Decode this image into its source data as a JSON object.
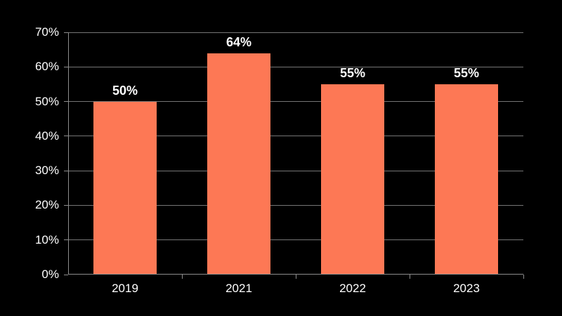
{
  "chart_data": {
    "type": "bar",
    "categories": [
      "2019",
      "2021",
      "2022",
      "2023"
    ],
    "values": [
      50,
      64,
      55,
      55
    ],
    "data_labels": [
      "50%",
      "64%",
      "55%",
      "55%"
    ],
    "title": "",
    "xlabel": "",
    "ylabel": "",
    "ylim": [
      0,
      70
    ],
    "ytick_step": 10,
    "ytick_labels": [
      "0%",
      "10%",
      "20%",
      "30%",
      "40%",
      "50%",
      "60%",
      "70%"
    ],
    "grid": "horizontal",
    "legend": "none",
    "colors": {
      "background": "#000000",
      "bar": "#FD7855",
      "gridline": "#757575",
      "axis": "#8c8c8c",
      "tick": "#8c8c8c",
      "text": "#ffffff"
    }
  }
}
